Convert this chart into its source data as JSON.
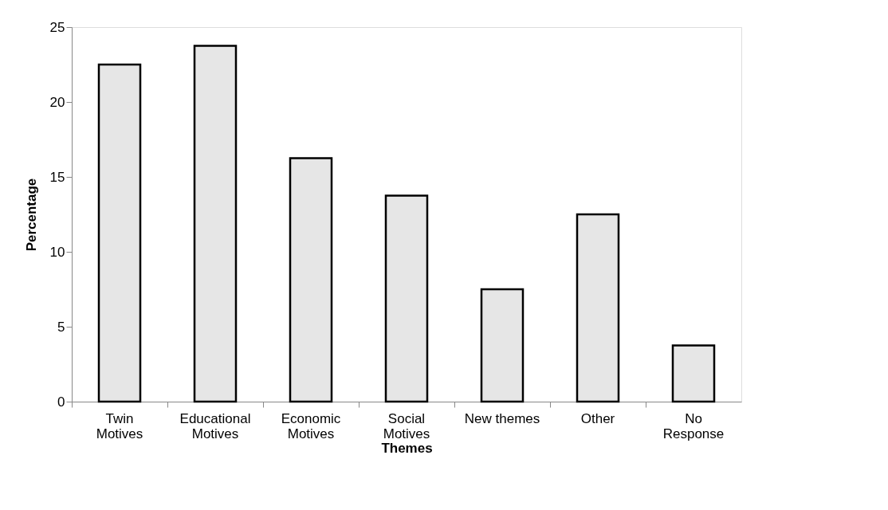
{
  "chart_data": {
    "type": "bar",
    "xlabel": "Themes",
    "ylabel": "Percentage",
    "categories": [
      "Twin Motives",
      "Educational Motives",
      "Economic Motives",
      "Social Motives",
      "New themes",
      "Other",
      "No Response"
    ],
    "values": [
      22.5,
      23.75,
      16.25,
      13.75,
      7.5,
      12.5,
      3.75
    ],
    "color": "#e6e6e6",
    "ylim": [
      0,
      25
    ],
    "yticks": [
      0,
      5,
      10,
      15,
      20,
      25
    ],
    "grid": false
  }
}
